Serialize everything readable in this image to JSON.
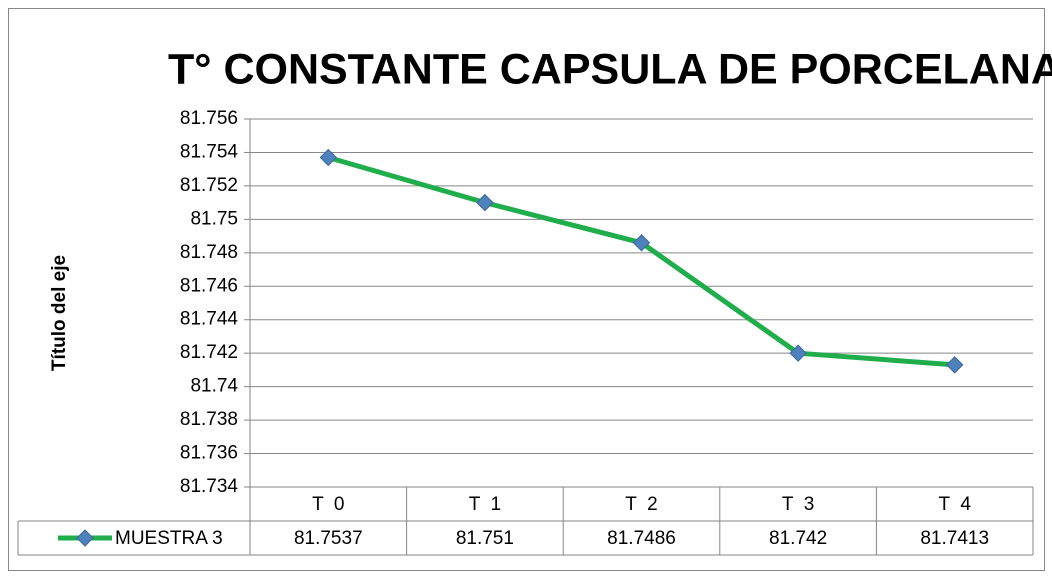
{
  "chart_data": {
    "type": "line",
    "title": "T° CONSTANTE CAPSULA DE PORCELANA",
    "y_axis_label": "Título del eje",
    "categories": [
      "T  0",
      "T  1",
      "T  2",
      "T  3",
      "T  4"
    ],
    "series": [
      {
        "name": "MUESTRA 3",
        "color": "#1fae4b",
        "marker_color": "#4f81bd",
        "values": [
          81.7537,
          81.751,
          81.7486,
          81.742,
          81.7413
        ]
      }
    ],
    "ylim": [
      81.734,
      81.756
    ],
    "yticks": [
      81.734,
      81.736,
      81.738,
      81.74,
      81.742,
      81.744,
      81.746,
      81.748,
      81.75,
      81.752,
      81.754,
      81.756
    ],
    "grid": true,
    "data_table": true
  }
}
